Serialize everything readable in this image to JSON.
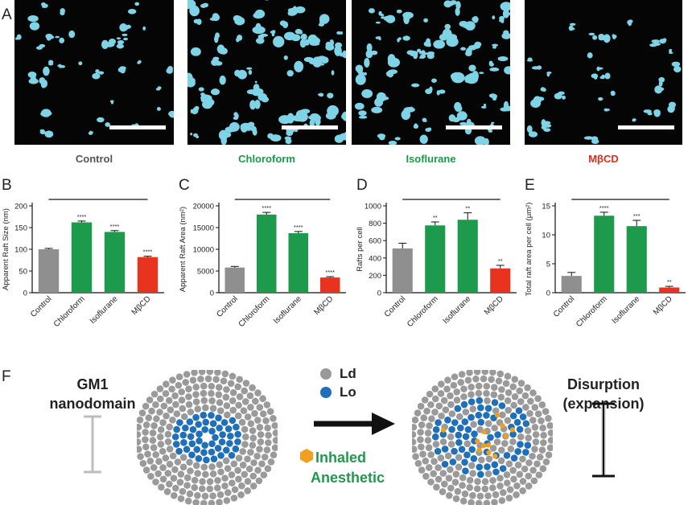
{
  "panel_a": {
    "letter": "A",
    "images": [
      {
        "label": "Control",
        "label_color": "#555555",
        "density": 0.55
      },
      {
        "label": "Chloroform",
        "label_color": "#1a9a4a",
        "density": 1.3
      },
      {
        "label": "Isoflurane",
        "label_color": "#1a9a4a",
        "density": 1.15
      },
      {
        "label": "MβCD",
        "label_color": "#e02b1e",
        "density": 0.45
      }
    ]
  },
  "colors": {
    "control": "#8f8f8f",
    "treatment": "#1e9a4c",
    "mbcd": "#e8341f",
    "raft": "#7fd3e6",
    "ld": "#9a9a9a",
    "lo": "#1f6fb9",
    "anesthetic": "#f0a01c"
  },
  "chart_data": [
    {
      "letter": "B",
      "type": "bar",
      "ylabel": "Apparent Raft Size (nm)",
      "categories": [
        "Control",
        "Chloroform",
        "Isoflurane",
        "MβCD"
      ],
      "values": [
        100,
        162,
        140,
        82
      ],
      "errors": [
        2,
        3,
        3,
        2
      ],
      "significance": [
        "",
        "****",
        "****",
        "****"
      ],
      "ylim": [
        0,
        200
      ],
      "yticks": [
        "0",
        "50",
        "100",
        "150",
        "200"
      ]
    },
    {
      "letter": "C",
      "type": "bar",
      "ylabel": "Apparent Raft Area (nm²)",
      "categories": [
        "Control",
        "Chloroform",
        "Isoflurane",
        "MβCD"
      ],
      "values": [
        5800,
        18000,
        13700,
        3500
      ],
      "errors": [
        250,
        500,
        400,
        200
      ],
      "significance": [
        "",
        "****",
        "****",
        "****"
      ],
      "ylim": [
        0,
        20000
      ],
      "yticks": [
        "0",
        "5000",
        "10000",
        "15000",
        "20000"
      ]
    },
    {
      "letter": "D",
      "type": "bar",
      "ylabel": "Rafts per cell",
      "categories": [
        "Control",
        "Chloroform",
        "Isoflurane",
        "MβCD"
      ],
      "values": [
        510,
        775,
        840,
        280
      ],
      "errors": [
        60,
        40,
        80,
        35
      ],
      "significance": [
        "",
        "**",
        "**",
        "**"
      ],
      "ylim": [
        0,
        1000
      ],
      "yticks": [
        "0",
        "200",
        "400",
        "600",
        "800",
        "1000"
      ]
    },
    {
      "letter": "E",
      "type": "bar",
      "ylabel": "Total raft area per cell (μm²)",
      "categories": [
        "Control",
        "Chloroform",
        "Isoflurane",
        "MβCD"
      ],
      "values": [
        2.9,
        13.3,
        11.5,
        0.9
      ],
      "errors": [
        0.6,
        0.6,
        1.0,
        0.2
      ],
      "significance": [
        "",
        "****",
        "***",
        "**"
      ],
      "ylim": [
        0,
        15
      ],
      "yticks": [
        "0",
        "5",
        "10",
        "15"
      ]
    }
  ],
  "panel_f": {
    "letter": "F",
    "left_title_line1": "GM1",
    "left_title_line2": "nanodomain",
    "legend_ld": "Ld",
    "legend_lo": "Lo",
    "anesthetic_line1": "Inhaled",
    "anesthetic_line2": "Anesthetic",
    "right_title_line1": "Disurption",
    "right_title_line2": "(expansion)"
  }
}
